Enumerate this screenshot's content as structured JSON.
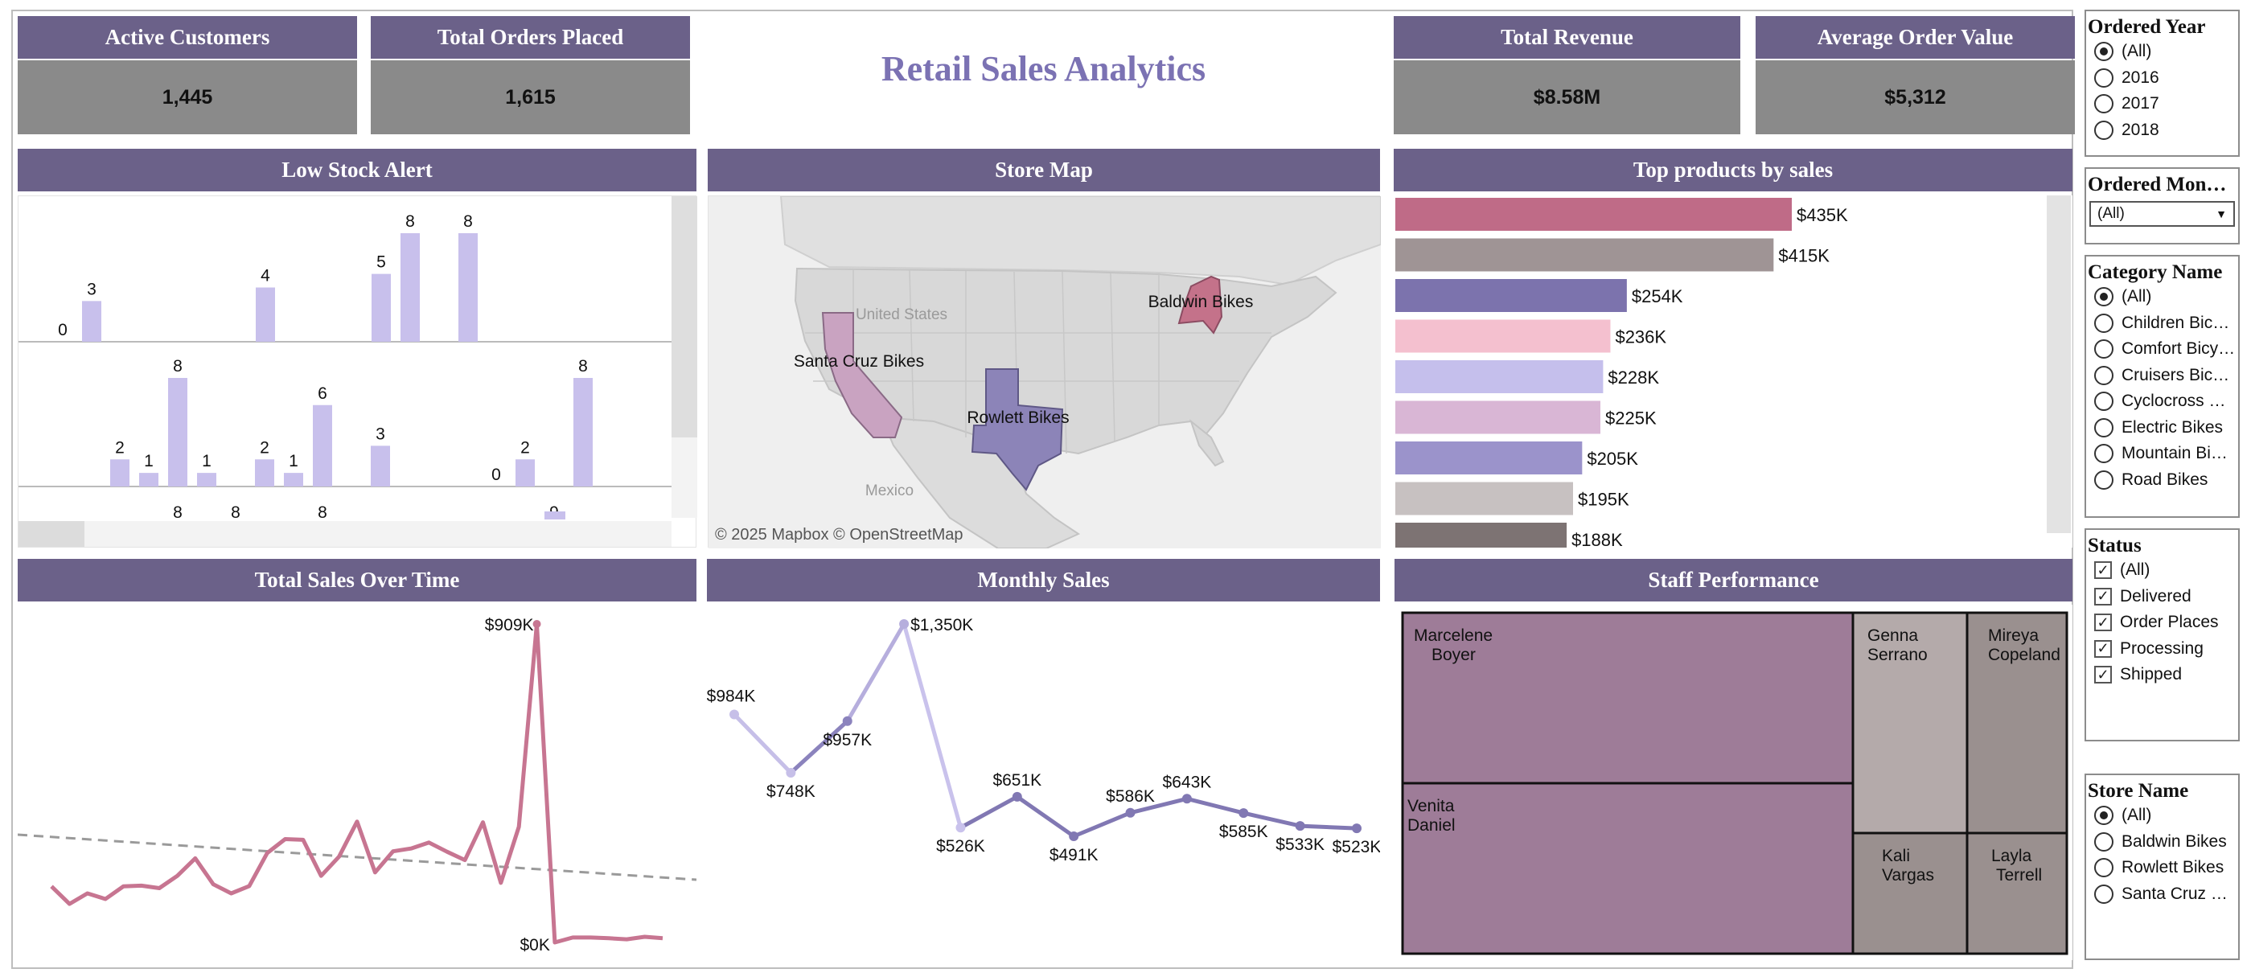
{
  "dashboard": {
    "title": "Retail Sales Analytics"
  },
  "kpis": [
    {
      "label": "Active Customers",
      "value": "1,445"
    },
    {
      "label": "Total Orders Placed",
      "value": "1,615"
    },
    {
      "label": "Total Revenue",
      "value": "$8.58M"
    },
    {
      "label": "Average Order Value",
      "value": "$5,312"
    }
  ],
  "panels": {
    "low_stock": "Low Stock Alert",
    "store_map": "Store Map",
    "top_products": "Top products by sales",
    "total_sales": "Total Sales Over Time",
    "monthly_sales": "Monthly Sales",
    "staff": "Staff Performance"
  },
  "low_stock": {
    "row1": [
      0,
      3,
      null,
      null,
      null,
      null,
      null,
      4,
      null,
      null,
      null,
      5,
      8,
      null,
      8
    ],
    "row2": [
      null,
      2,
      1,
      8,
      1,
      null,
      2,
      1,
      6,
      null,
      3,
      null,
      null,
      null,
      0,
      2,
      null,
      8
    ],
    "row3": [
      "8",
      "8",
      "8",
      "9"
    ]
  },
  "map": {
    "stores": [
      "Baldwin Bikes",
      "Santa Cruz Bikes",
      "Rowlett Bikes"
    ],
    "labels": [
      "United States",
      "Mexico"
    ],
    "attribution": "© 2025 Mapbox  © OpenStreetMap",
    "colors": {
      "Baldwin Bikes": "#c4728a",
      "Santa Cruz Bikes": "#c9a3c1",
      "Rowlett Bikes": "#8c84b8"
    }
  },
  "top_products": {
    "values_k": [
      435,
      415,
      254,
      236,
      228,
      225,
      205,
      195,
      188
    ],
    "labels": [
      "$435K",
      "$415K",
      "$254K",
      "$236K",
      "$228K",
      "$225K",
      "$205K",
      "$195K",
      "$188K"
    ],
    "colors": [
      "#bf6b87",
      "#9f9495",
      "#7c73ad",
      "#f4c0cf",
      "#c5bfec",
      "#d9b6d5",
      "#9b93cb",
      "#c7c1c1",
      "#7d7373"
    ]
  },
  "chart_data": [
    {
      "type": "line",
      "title": "Total Sales Over Time",
      "y": [
        0.16,
        0.11,
        0.14,
        0.124,
        0.16,
        0.162,
        0.155,
        0.19,
        0.24,
        0.166,
        0.14,
        0.161,
        0.255,
        0.295,
        0.293,
        0.19,
        0.245,
        0.345,
        0.2,
        0.26,
        0.268,
        0.285,
        0.259,
        0.235,
        0.343,
        0.17,
        0.33,
        0.909,
        0.0,
        0.014,
        0.014,
        0.012,
        0.009,
        0.016,
        0.012
      ],
      "peak_label": "$909K",
      "min_label": "$0K",
      "trend": "dashed gray"
    },
    {
      "type": "line",
      "title": "Monthly Sales",
      "y_k": [
        984,
        748,
        957,
        1350,
        526,
        651,
        491,
        586,
        643,
        585,
        533,
        523
      ],
      "labels": [
        "$984K",
        "$748K",
        "$957K",
        "$1,350K",
        "$526K",
        "$651K",
        "$491K",
        "$586K",
        "$643K",
        "$585K",
        "$533K",
        "$523K"
      ]
    }
  ],
  "staff": [
    {
      "name": "Marcelene Boyer",
      "line1": "Marcelene",
      "line2": "Boyer"
    },
    {
      "name": "Venita Daniel",
      "line1": "Venita",
      "line2": "Daniel"
    },
    {
      "name": "Genna Serrano",
      "line1": "Genna",
      "line2": "Serrano"
    },
    {
      "name": "Mireya Copeland",
      "line1": "Mireya",
      "line2": "Copeland"
    },
    {
      "name": "Kali Vargas",
      "line1": "Kali",
      "line2": "Vargas"
    },
    {
      "name": "Layla Terrell",
      "line1": "Layla",
      "line2": "Terrell"
    }
  ],
  "staff_colors": {
    "main": "#9e7c98",
    "gray1": "#b4aaaa",
    "gray2": "#9a908f"
  },
  "filters": {
    "ordered_year": {
      "title": "Ordered Year",
      "options": [
        "(All)",
        "2016",
        "2017",
        "2018"
      ],
      "selected": "(All)"
    },
    "ordered_month": {
      "title": "Ordered Mon…",
      "value": "(All)"
    },
    "category": {
      "title": "Category Name",
      "options": [
        "(All)",
        "Children Bic…",
        "Comfort Bicy…",
        "Cruisers Bic…",
        "Cyclocross …",
        "Electric Bikes",
        "Mountain Bi…",
        "Road Bikes"
      ],
      "selected": "(All)"
    },
    "status": {
      "title": "Status",
      "options": [
        "(All)",
        "Delivered",
        "Order Places",
        "Processing",
        "Shipped"
      ]
    },
    "store": {
      "title": "Store Name",
      "options": [
        "(All)",
        "Baldwin Bikes",
        "Rowlett Bikes",
        "Santa Cruz …"
      ],
      "selected": "(All)"
    }
  }
}
